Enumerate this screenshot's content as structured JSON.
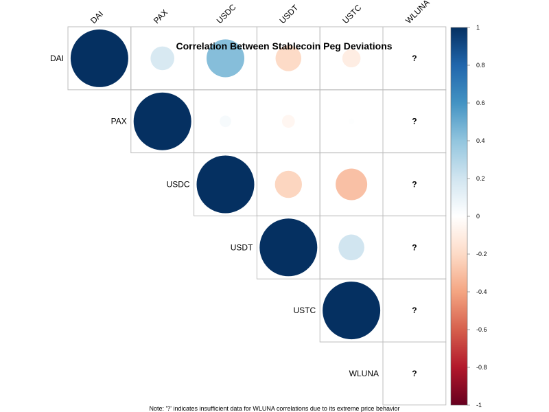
{
  "chart_data": {
    "type": "heatmap",
    "subtype": "correlation-circle-upper",
    "title": "Correlation Between Stablecoin Peg Deviations",
    "variables": [
      "DAI",
      "PAX",
      "USDC",
      "USDT",
      "USTC",
      "WLUNA"
    ],
    "matrix": [
      [
        1.0,
        0.17,
        0.43,
        -0.2,
        -0.1,
        null
      ],
      [
        null,
        1.0,
        0.04,
        -0.05,
        0.01,
        null
      ],
      [
        null,
        null,
        1.0,
        -0.22,
        -0.3,
        null
      ],
      [
        null,
        null,
        null,
        1.0,
        0.2,
        null
      ],
      [
        null,
        null,
        null,
        null,
        1.0,
        null
      ],
      [
        null,
        null,
        null,
        null,
        null,
        null
      ]
    ],
    "missing_symbol": "?",
    "colorbar": {
      "range": [
        -1,
        1
      ],
      "ticks": [
        "1",
        "0.8",
        "0.6",
        "0.4",
        "0.2",
        "0",
        "-0.2",
        "-0.4",
        "-0.6",
        "-0.8",
        "-1"
      ],
      "colors": {
        "negative": "#67001F",
        "neutral": "#FFFFFF",
        "positive": "#053061"
      }
    },
    "grid": true,
    "legend": "right"
  },
  "note": "Note: '?' indicates insufficient data for WLUNA correlations due to its extreme price behavior"
}
